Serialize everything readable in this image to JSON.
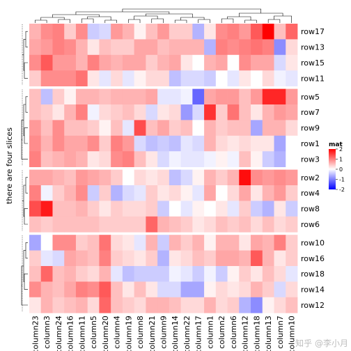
{
  "chart_data": {
    "type": "heatmap",
    "row_title": "there are four slices",
    "legend": {
      "title": "mat",
      "ticks": [
        2,
        1,
        0,
        -1,
        -2
      ],
      "range": [
        -2,
        2
      ],
      "colors": {
        "low": "#0000ff",
        "mid": "#ffffff",
        "high": "#ff0000"
      }
    },
    "columns": [
      "column23",
      "column3",
      "column24",
      "column16",
      "column11",
      "column5",
      "column20",
      "column4",
      "column19",
      "column8",
      "column21",
      "column9",
      "column14",
      "column22",
      "column17",
      "column1",
      "column2",
      "column6",
      "column12",
      "column18",
      "column13",
      "column7",
      "column10"
    ],
    "slices": [
      {
        "rows": [
          "row17",
          "row13",
          "row15",
          "row11"
        ],
        "values": [
          [
            0.6,
            0.9,
            1.0,
            0.4,
            0.9,
            -0.4,
            -0.3,
            0.8,
            0.6,
            0.1,
            0.5,
            0.8,
            0.4,
            0.4,
            -0.6,
            0.2,
            0.9,
            1.0,
            0.8,
            1.3,
            2.0,
            0.5,
            1.2
          ],
          [
            0.7,
            0.8,
            1.0,
            0.9,
            0.6,
            0.2,
            0.5,
            0.4,
            0.4,
            0.7,
            0.7,
            0.5,
            0.6,
            0.6,
            0.6,
            -0.6,
            1.0,
            0.9,
            1.0,
            1.1,
            1.0,
            -0.9,
            0.3
          ],
          [
            0.9,
            1.3,
            0.8,
            0.8,
            0.6,
            1.0,
            0.7,
            0.6,
            0.7,
            0.7,
            0.4,
            0.6,
            0.7,
            0.2,
            0.0,
            0.6,
            0.7,
            0.0,
            0.9,
            0.7,
            0.7,
            -0.3,
            0.2
          ],
          [
            0.4,
            0.9,
            0.9,
            0.9,
            1.1,
            0.2,
            -0.2,
            0.3,
            -0.2,
            0.1,
            0.3,
            0.3,
            -0.5,
            -0.3,
            -0.3,
            -0.4,
            0.0,
            -0.2,
            0.2,
            0.0,
            0.3,
            -0.1,
            -0.2
          ]
        ]
      },
      {
        "rows": [
          "row5",
          "row7",
          "row9",
          "row1",
          "row3"
        ],
        "values": [
          [
            0.5,
            -0.5,
            0.4,
            0.1,
            0.6,
            0.6,
            0.5,
            0.6,
            0.6,
            0.6,
            0.7,
            -0.2,
            -0.2,
            -0.1,
            -1.2,
            0.7,
            0.8,
            0.8,
            0.5,
            0.8,
            1.7,
            1.7,
            0.8
          ],
          [
            0.5,
            0.4,
            0.2,
            0.6,
            1.0,
            -0.1,
            0.3,
            0.4,
            0.5,
            0.3,
            -0.3,
            0.2,
            0.3,
            -0.8,
            -0.3,
            1.6,
            0.4,
            1.1,
            0.5,
            0.2,
            0.6,
            0.8,
            0.7
          ],
          [
            0.8,
            0.5,
            0.9,
            0.5,
            0.5,
            0.4,
            0.1,
            0.5,
            -0.2,
            1.4,
            0.5,
            0.7,
            0.4,
            0.5,
            0.0,
            0.6,
            0.4,
            0.5,
            0.5,
            -0.7,
            0.6,
            0.6,
            0.3
          ],
          [
            0.9,
            0.6,
            0.9,
            0.7,
            0.7,
            0.9,
            0.4,
            1.0,
            0.8,
            -0.3,
            -0.5,
            -0.4,
            -0.5,
            -0.2,
            -0.3,
            0.6,
            0.3,
            0.2,
            0.3,
            0.2,
            0.2,
            -0.7,
            0.0
          ],
          [
            1.0,
            0.5,
            0.6,
            0.7,
            0.6,
            0.2,
            0.3,
            0.9,
            1.0,
            0.5,
            0.2,
            -0.3,
            -0.1,
            -0.2,
            -0.2,
            -0.1,
            0.1,
            -0.1,
            0.5,
            0.1,
            -0.4,
            -0.6,
            0.0
          ]
        ]
      },
      {
        "rows": [
          "row2",
          "row4",
          "row8",
          "row6"
        ],
        "values": [
          [
            0.7,
            0.7,
            0.6,
            0.5,
            0.8,
            0.7,
            0.6,
            0.4,
            0.0,
            0.3,
            0.2,
            0.3,
            -0.5,
            -0.3,
            0.1,
            0.6,
            0.4,
            0.6,
            1.9,
            0.9,
            0.8,
            0.9,
            0.8
          ],
          [
            1.0,
            -0.1,
            0.4,
            0.6,
            0.9,
            -0.4,
            0.4,
            -0.6,
            -0.3,
            -0.2,
            0.4,
            0.2,
            0.3,
            0.1,
            -0.2,
            0.7,
            0.0,
            0.3,
            0.7,
            0.2,
            0.6,
            0.8,
            0.4
          ],
          [
            1.4,
            1.8,
            0.5,
            0.5,
            0.6,
            0.4,
            0.2,
            0.4,
            0.3,
            0.3,
            0.4,
            -0.4,
            0.0,
            -0.2,
            0.1,
            0.0,
            0.2,
            -0.2,
            0.4,
            -0.4,
            -0.6,
            0.2,
            -0.4
          ],
          [
            0.5,
            0.4,
            0.5,
            0.5,
            0.5,
            0.5,
            0.4,
            0.4,
            0.4,
            0.4,
            1.2,
            0.6,
            0.5,
            0.4,
            0.2,
            0.3,
            0.5,
            0.4,
            0.5,
            0.3,
            0.5,
            0.3,
            0.4
          ]
        ]
      },
      {
        "rows": [
          "row10",
          "row16",
          "row18",
          "row14",
          "row12"
        ],
        "values": [
          [
            -0.7,
            0.0,
            0.9,
            0.9,
            0.4,
            0.5,
            1.1,
            0.3,
            0.2,
            -0.2,
            0.6,
            -0.4,
            0.6,
            0.4,
            0.6,
            0.1,
            0.6,
            0.6,
            0.2,
            0.7,
            0.6,
            1.0,
            0.4
          ],
          [
            0.4,
            -0.2,
            -0.3,
            0.7,
            0.6,
            0.5,
            1.0,
            0.4,
            0.3,
            0.2,
            0.4,
            -0.6,
            0.2,
            0.3,
            0.5,
            0.4,
            0.7,
            0.7,
            0.6,
            1.3,
            0.6,
            0.2,
            0.4
          ],
          [
            0.5,
            1.2,
            0.5,
            0.6,
            0.4,
            0.3,
            0.6,
            -0.2,
            -0.5,
            -0.4,
            -0.4,
            -0.4,
            -0.1,
            -0.2,
            -0.4,
            -0.1,
            -0.4,
            0.1,
            0.4,
            0.2,
            0.5,
            0.3,
            -0.2
          ],
          [
            0.9,
            0.6,
            0.5,
            0.7,
            1.0,
            0.9,
            1.3,
            0.5,
            0.2,
            0.5,
            0.2,
            -0.3,
            -0.3,
            -0.7,
            -0.7,
            0.1,
            0.3,
            0.2,
            0.3,
            0.6,
            0.4,
            -0.3,
            0.3
          ],
          [
            0.2,
            0.6,
            0.4,
            0.5,
            0.6,
            0.3,
            1.2,
            0.5,
            0.4,
            0.3,
            0.6,
            0.6,
            0.5,
            0.3,
            0.3,
            0.6,
            0.3,
            0.4,
            -0.6,
            -0.9,
            0.1,
            0.3,
            0.5
          ]
        ]
      }
    ]
  },
  "watermark": "知乎 @李小月"
}
